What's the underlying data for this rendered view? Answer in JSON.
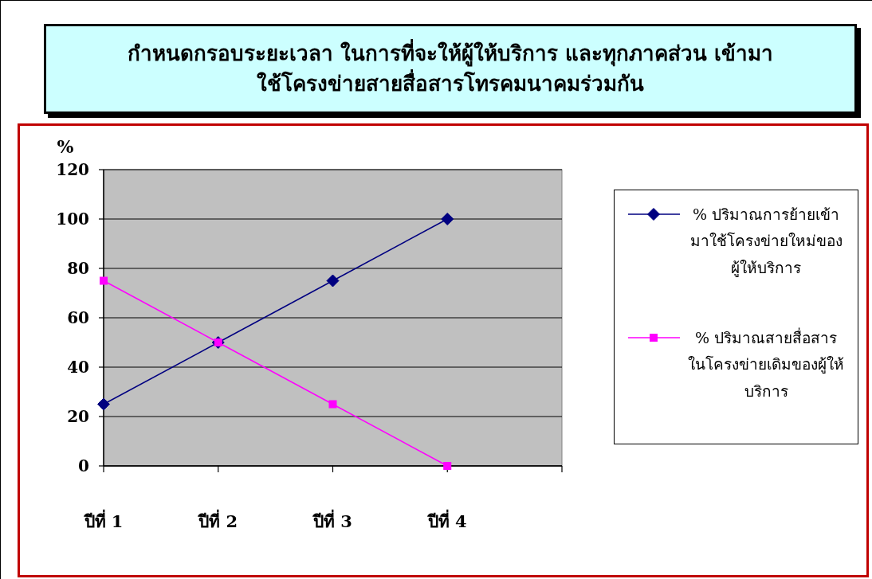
{
  "chart_data": {
    "type": "line",
    "title": "กำหนดกรอบระยะเวลา ในการที่จะให้ผู้ให้บริการ และทุกภาคส่วน เข้ามาใช้โครงข่ายสายสื่อสารโทรคมนาคมร่วมกัน",
    "ylabel": "%",
    "categories": [
      "ปีที่ 1",
      "ปีที่ 2",
      "ปีที่ 3",
      "ปีที่ 4"
    ],
    "series": [
      {
        "name": "% ปริมาณการย้ายเข้ามาใช้โครงข่ายใหม่ของผู้ให้บริการ",
        "color": "#000080",
        "marker": "diamond",
        "values": [
          25,
          50,
          75,
          100
        ]
      },
      {
        "name": "% ปริมาณสายสื่อสารในโครงข่ายเดิมของผู้ให้บริการ",
        "color": "#ff00ff",
        "marker": "square",
        "values": [
          75,
          50,
          25,
          0
        ]
      }
    ],
    "ylim": [
      0,
      120
    ],
    "yticks": [
      0,
      20,
      40,
      60,
      80,
      100,
      120
    ],
    "grid": "y",
    "legend": "right"
  }
}
